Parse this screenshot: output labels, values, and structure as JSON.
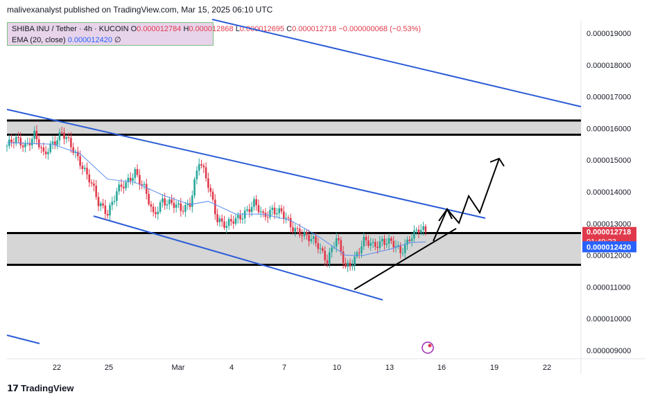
{
  "header": {
    "attribution": "malivexanalyst published on TradingView.com, Mar 15, 2025 06:10 UTC"
  },
  "legend": {
    "symbol": "SHIBA INU / Tether · 4h · KUCOIN",
    "open_label": "O",
    "open": "0.000012784",
    "high_label": "H",
    "high": "0.000012868",
    "low_label": "L",
    "low": "0.000012695",
    "close_label": "C",
    "close": "0.000012718",
    "change": "−0.000000068 (−0.53%)",
    "ema_label": "EMA (20, close)",
    "ema_value": "0.000012420",
    "ema_extra": "∅"
  },
  "footer": {
    "brand": "TradingView"
  },
  "colors": {
    "up": "#26a69a",
    "down": "#e0394b",
    "channel": "#2a5bd7",
    "ema": "#5b8def",
    "zone": "#d6d6d6",
    "last_price_bg": "#e0394b",
    "ema_price_bg": "#2962ff"
  },
  "chart_data": {
    "type": "candlestick",
    "x_tick_labels": [
      "22",
      "25",
      "Mar",
      "4",
      "7",
      "10",
      "13",
      "16",
      "19",
      "22"
    ],
    "y_tick_labels": [
      "0.000019000",
      "0.000018000",
      "0.000017000",
      "0.000016000",
      "0.000015000",
      "0.000014000",
      "0.000013000",
      "0.000012000",
      "0.000011000",
      "0.000010000",
      "0.000009000"
    ],
    "ylim": [
      8.7e-06,
      1.97e-05
    ],
    "last_price_label": "0.000012718",
    "countdown": "01:49:23",
    "ema_price_label": "0.000012420",
    "zones": [
      {
        "low": 1.58e-05,
        "high": 1.625e-05
      },
      {
        "low": 1.17e-05,
        "high": 1.27e-05
      }
    ],
    "close_path": [
      [
        0,
        15.45
      ],
      [
        4,
        15.6
      ],
      [
        8,
        15.5
      ],
      [
        12,
        15.8
      ],
      [
        16,
        15.1
      ],
      [
        20,
        15.6
      ],
      [
        24,
        15.85
      ],
      [
        28,
        15.4
      ],
      [
        32,
        15.0
      ],
      [
        36,
        14.4
      ],
      [
        40,
        13.6
      ],
      [
        44,
        13.4
      ],
      [
        48,
        14.0
      ],
      [
        52,
        14.2
      ],
      [
        56,
        14.7
      ],
      [
        60,
        14.1
      ],
      [
        64,
        13.2
      ],
      [
        68,
        13.8
      ],
      [
        72,
        13.6
      ],
      [
        76,
        13.4
      ],
      [
        80,
        13.7
      ],
      [
        84,
        14.95
      ],
      [
        88,
        14.2
      ],
      [
        92,
        13.2
      ],
      [
        96,
        12.9
      ],
      [
        100,
        13.1
      ],
      [
        104,
        13.4
      ],
      [
        108,
        13.6
      ],
      [
        112,
        13.2
      ],
      [
        116,
        13.5
      ],
      [
        120,
        13.3
      ],
      [
        124,
        12.9
      ],
      [
        128,
        12.8
      ],
      [
        132,
        12.5
      ],
      [
        136,
        12.3
      ],
      [
        140,
        11.9
      ],
      [
        144,
        12.5
      ],
      [
        148,
        11.6
      ],
      [
        152,
        11.95
      ],
      [
        156,
        12.4
      ],
      [
        160,
        12.3
      ],
      [
        164,
        12.5
      ],
      [
        168,
        12.35
      ],
      [
        172,
        12.1
      ],
      [
        176,
        12.6
      ],
      [
        180,
        12.75
      ],
      [
        183,
        12.72
      ]
    ],
    "ema_path": [
      [
        0,
        15.55
      ],
      [
        20,
        15.5
      ],
      [
        32,
        15.2
      ],
      [
        44,
        14.4
      ],
      [
        56,
        14.3
      ],
      [
        68,
        13.9
      ],
      [
        80,
        13.6
      ],
      [
        88,
        13.7
      ],
      [
        100,
        13.3
      ],
      [
        112,
        13.3
      ],
      [
        124,
        13.1
      ],
      [
        136,
        12.6
      ],
      [
        148,
        12.0
      ],
      [
        156,
        12.0
      ],
      [
        168,
        12.2
      ],
      [
        176,
        12.4
      ],
      [
        183,
        12.42
      ]
    ]
  }
}
